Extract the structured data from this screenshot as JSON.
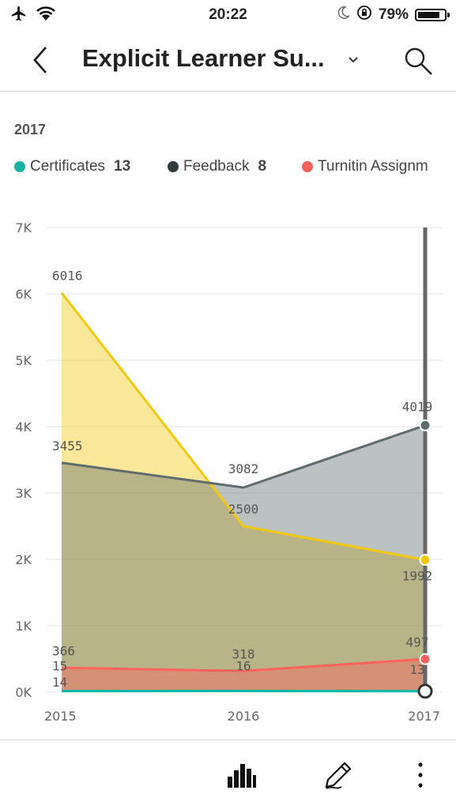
{
  "status": {
    "time": "20:22",
    "battery": "79%",
    "battery_level": 0.79
  },
  "header": {
    "title": "Explicit Learner Su..."
  },
  "filter_label": "2017",
  "legend": [
    {
      "label": "Certificates",
      "count": "13",
      "color": "#1aafa0"
    },
    {
      "label": "Feedback",
      "count": "8",
      "color": "#2f3b3d"
    },
    {
      "label": "Turnitin Assignm",
      "count": "",
      "color": "#f0605a"
    }
  ],
  "icons": [
    "airplane-icon",
    "wifi-icon",
    "moon-icon",
    "orientation-lock-icon",
    "battery-icon",
    "back-icon",
    "chevron-down-icon",
    "search-icon",
    "bar-chart-icon",
    "pencil-icon",
    "more-icon"
  ],
  "chart_data": {
    "type": "area",
    "x": [
      "2015",
      "2016",
      "2017"
    ],
    "ylim": [
      0,
      7000
    ],
    "yticks": [
      0,
      1000,
      2000,
      3000,
      4000,
      5000,
      6000,
      7000
    ],
    "ytick_labels": [
      "0K",
      "1K",
      "2K",
      "3K",
      "4K",
      "5K",
      "6K",
      "7K"
    ],
    "grid": true,
    "selected_x": "2017",
    "series": [
      {
        "values": [
          6016,
          2500,
          1992
        ],
        "color": "#f2c80f"
      },
      {
        "values": [
          3455,
          3082,
          4019
        ],
        "color": "#5f6b6d"
      },
      {
        "values": [
          366,
          318,
          497
        ],
        "color": "#fd625e"
      },
      {
        "values": [
          15,
          16,
          13
        ],
        "color": "#01b8aa"
      },
      {
        "values": [
          14,
          null,
          null
        ],
        "color": "#374649"
      }
    ]
  }
}
